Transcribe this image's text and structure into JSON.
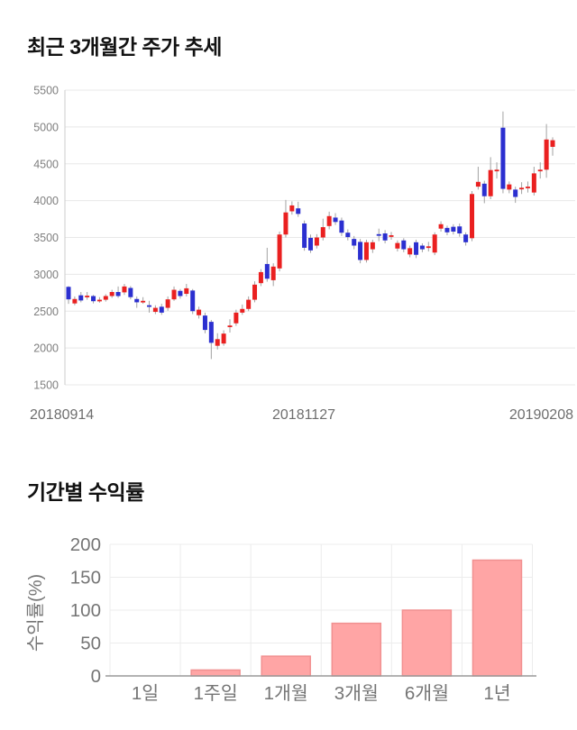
{
  "chart_data": [
    {
      "type": "candlestick",
      "title": "최근 3개월간 주가 추세",
      "ylabel": "",
      "xlabel": "",
      "ylim": [
        1500,
        5500
      ],
      "y_ticks": [
        5500,
        5000,
        4500,
        4000,
        3500,
        3000,
        2500,
        2000,
        1500
      ],
      "x_tick_labels": [
        "20180914",
        "20181127",
        "20190208"
      ],
      "grid": true,
      "legend": "none",
      "colors": {
        "up": "#ea2020",
        "down": "#2b2fd0",
        "wick": "#a2a2a2",
        "grid": "#e8e8e8",
        "axis": "#cccccc",
        "tick_text": "#7f7f7f",
        "date_text": "#6e6e6e"
      },
      "candles_ohlc": [
        [
          2830,
          2840,
          2600,
          2660
        ],
        [
          2605,
          2700,
          2580,
          2665
        ],
        [
          2715,
          2760,
          2620,
          2645
        ],
        [
          2705,
          2760,
          2655,
          2710
        ],
        [
          2705,
          2720,
          2605,
          2635
        ],
        [
          2650,
          2690,
          2615,
          2655
        ],
        [
          2655,
          2730,
          2630,
          2705
        ],
        [
          2705,
          2790,
          2680,
          2760
        ],
        [
          2760,
          2835,
          2680,
          2705
        ],
        [
          2755,
          2870,
          2720,
          2835
        ],
        [
          2815,
          2840,
          2660,
          2690
        ],
        [
          2665,
          2700,
          2545,
          2620
        ],
        [
          2640,
          2690,
          2600,
          2640
        ],
        [
          2580,
          2640,
          2480,
          2575
        ],
        [
          2490,
          2580,
          2460,
          2545
        ],
        [
          2560,
          2600,
          2450,
          2480
        ],
        [
          2545,
          2700,
          2505,
          2660
        ],
        [
          2660,
          2835,
          2640,
          2790
        ],
        [
          2775,
          2800,
          2670,
          2705
        ],
        [
          2735,
          2870,
          2700,
          2810
        ],
        [
          2780,
          2800,
          2460,
          2500
        ],
        [
          2445,
          2560,
          2400,
          2520
        ],
        [
          2440,
          2480,
          2200,
          2245
        ],
        [
          2355,
          2380,
          1850,
          2070
        ],
        [
          2030,
          2200,
          1980,
          2120
        ],
        [
          2060,
          2240,
          2030,
          2195
        ],
        [
          2300,
          2390,
          2210,
          2305
        ],
        [
          2335,
          2520,
          2300,
          2480
        ],
        [
          2480,
          2590,
          2450,
          2530
        ],
        [
          2530,
          2700,
          2500,
          2655
        ],
        [
          2655,
          2905,
          2620,
          2860
        ],
        [
          2880,
          3070,
          2840,
          3030
        ],
        [
          3140,
          3360,
          2900,
          2940
        ],
        [
          2920,
          3150,
          2840,
          3105
        ],
        [
          3080,
          3580,
          3040,
          3540
        ],
        [
          3540,
          4010,
          3500,
          3840
        ],
        [
          3855,
          3990,
          3810,
          3935
        ],
        [
          3895,
          3985,
          3780,
          3820
        ],
        [
          3690,
          3730,
          3320,
          3360
        ],
        [
          3495,
          3540,
          3290,
          3325
        ],
        [
          3390,
          3545,
          3350,
          3500
        ],
        [
          3500,
          3755,
          3460,
          3640
        ],
        [
          3655,
          3850,
          3610,
          3790
        ],
        [
          3770,
          3830,
          3670,
          3710
        ],
        [
          3730,
          3770,
          3520,
          3565
        ],
        [
          3565,
          3610,
          3460,
          3505
        ],
        [
          3480,
          3520,
          3340,
          3390
        ],
        [
          3440,
          3480,
          3150,
          3195
        ],
        [
          3195,
          3470,
          3160,
          3435
        ],
        [
          3340,
          3470,
          3290,
          3435
        ],
        [
          3545,
          3620,
          3450,
          3540
        ],
        [
          3555,
          3600,
          3420,
          3460
        ],
        [
          3525,
          3575,
          3470,
          3530
        ],
        [
          3350,
          3460,
          3310,
          3425
        ],
        [
          3460,
          3490,
          3300,
          3340
        ],
        [
          3270,
          3390,
          3230,
          3355
        ],
        [
          3435,
          3470,
          3220,
          3265
        ],
        [
          3390,
          3420,
          3300,
          3340
        ],
        [
          3375,
          3440,
          3310,
          3380
        ],
        [
          3295,
          3570,
          3260,
          3540
        ],
        [
          3620,
          3720,
          3580,
          3680
        ],
        [
          3630,
          3660,
          3530,
          3570
        ],
        [
          3645,
          3680,
          3540,
          3580
        ],
        [
          3650,
          3690,
          3510,
          3555
        ],
        [
          3540,
          3570,
          3390,
          3435
        ],
        [
          3490,
          4130,
          3450,
          4090
        ],
        [
          4190,
          4460,
          4150,
          4255
        ],
        [
          4230,
          4270,
          3965,
          4060
        ],
        [
          4060,
          4590,
          4020,
          4415
        ],
        [
          4415,
          4520,
          4300,
          4420
        ],
        [
          4990,
          5210,
          4100,
          4160
        ],
        [
          4150,
          4260,
          4100,
          4220
        ],
        [
          4150,
          4190,
          3970,
          4050
        ],
        [
          4170,
          4250,
          4090,
          4175
        ],
        [
          4185,
          4260,
          4110,
          4190
        ],
        [
          4110,
          4460,
          4070,
          4370
        ],
        [
          4415,
          4520,
          4300,
          4420
        ],
        [
          4420,
          5040,
          4310,
          4830
        ],
        [
          4730,
          4860,
          4610,
          4820
        ]
      ]
    },
    {
      "type": "bar",
      "title": "기간별 수익률",
      "ylabel": "수익률(%)",
      "xlabel": "",
      "categories": [
        "1일",
        "1주일",
        "1개월",
        "3개월",
        "6개월",
        "1년"
      ],
      "values": [
        0,
        9,
        30,
        80,
        100,
        176
      ],
      "ylim": [
        0,
        200
      ],
      "y_ticks": [
        0,
        50,
        100,
        150,
        200
      ],
      "grid": true,
      "legend": "none",
      "colors": {
        "bar_fill": "#ffa5a5",
        "bar_stroke": "#f19090",
        "grid": "#ececec",
        "baseline": "#999999",
        "tick_text": "#757575",
        "label_text": "#757575"
      }
    }
  ]
}
